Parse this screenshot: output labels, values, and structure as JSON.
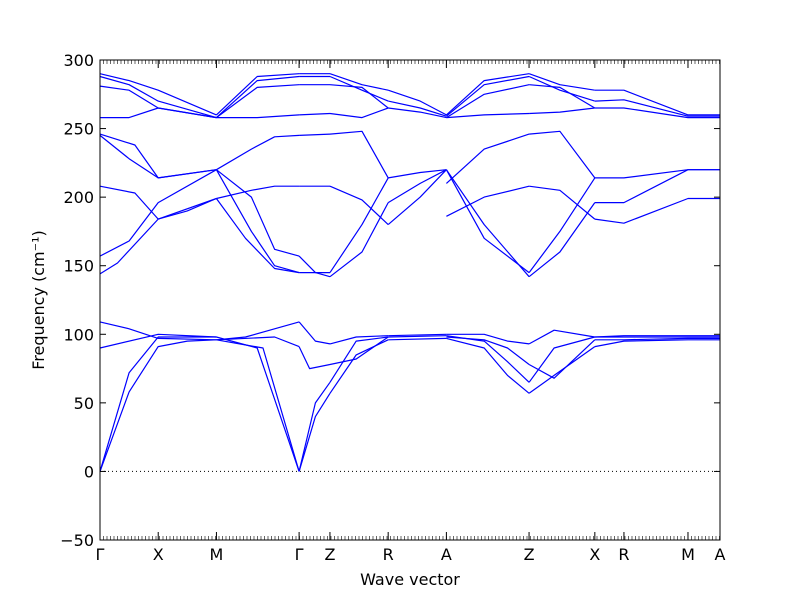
{
  "chart_data": {
    "type": "line",
    "xlabel": "Wave vector",
    "ylabel": "Frequency (cm⁻¹)",
    "ylim": [
      -50,
      300
    ],
    "yticks": [
      -50,
      0,
      50,
      100,
      150,
      200,
      250,
      300
    ],
    "xticks": [
      {
        "label": "Γ",
        "pos": 0.0
      },
      {
        "label": "X",
        "pos": 1.0
      },
      {
        "label": "M",
        "pos": 2.0
      },
      {
        "label": "Γ",
        "pos": 3.42
      },
      {
        "label": "Z",
        "pos": 3.95
      },
      {
        "label": "R",
        "pos": 4.95
      },
      {
        "label": "A",
        "pos": 5.95
      },
      {
        "label": "Z",
        "pos": 7.37
      },
      {
        "label": "X",
        "pos": 8.5
      },
      {
        "label": "R",
        "pos": 9.0
      },
      {
        "label": "M",
        "pos": 10.1
      },
      {
        "label": "A",
        "pos": 10.65
      }
    ],
    "xlim": [
      0,
      10.65
    ],
    "zero_line": true,
    "line_color": "#0000ff",
    "series": [
      {
        "x": [
          0,
          0.5,
          1.0,
          1.5,
          2.0
        ],
        "y": [
          0,
          58,
          91,
          95,
          96
        ]
      },
      {
        "x": [
          0,
          0.5,
          1.0,
          1.5,
          2.0
        ],
        "y": [
          0,
          72,
          98,
          98,
          98
        ]
      },
      {
        "x": [
          0,
          1.0,
          2.0
        ],
        "y": [
          90,
          100,
          98
        ]
      },
      {
        "x": [
          0,
          0.5,
          1.0,
          2.0
        ],
        "y": [
          109,
          104,
          97,
          96
        ]
      },
      {
        "x": [
          0,
          0.3,
          1.0,
          2.0
        ],
        "y": [
          144,
          152,
          184,
          199
        ]
      },
      {
        "x": [
          0,
          0.5,
          1.0,
          2.0
        ],
        "y": [
          157,
          168,
          196,
          220
        ]
      },
      {
        "x": [
          0,
          0.6,
          1.0,
          1.5,
          2.0
        ],
        "y": [
          208,
          203,
          184,
          190,
          199
        ]
      },
      {
        "x": [
          0,
          0.6,
          1.0,
          2.0
        ],
        "y": [
          246,
          238,
          214,
          220
        ]
      },
      {
        "x": [
          0,
          0.5,
          1.0,
          2.0
        ],
        "y": [
          245,
          228,
          214,
          220
        ]
      },
      {
        "x": [
          0,
          0.5,
          1.0,
          2.0
        ],
        "y": [
          258,
          258,
          265,
          258
        ]
      },
      {
        "x": [
          0,
          0.5,
          1.0,
          2.0
        ],
        "y": [
          281,
          278,
          265,
          258
        ]
      },
      {
        "x": [
          0,
          0.5,
          1.0,
          2.0
        ],
        "y": [
          288,
          282,
          270,
          258
        ]
      },
      {
        "x": [
          0,
          0.5,
          1.0,
          2.0
        ],
        "y": [
          290,
          285,
          278,
          260
        ]
      },
      {
        "x": [
          2.0,
          2.5,
          3.0,
          3.42
        ],
        "y": [
          96,
          98,
          104,
          109
        ]
      },
      {
        "x": [
          2.0,
          2.7,
          3.42
        ],
        "y": [
          98,
          90,
          0
        ]
      },
      {
        "x": [
          2.0,
          2.8,
          3.42
        ],
        "y": [
          96,
          90,
          0
        ]
      },
      {
        "x": [
          2.0,
          3.0,
          3.42
        ],
        "y": [
          96,
          98,
          91
        ]
      },
      {
        "x": [
          2.0,
          2.6,
          3.0,
          3.42
        ],
        "y": [
          199,
          205,
          208,
          208
        ]
      },
      {
        "x": [
          2.0,
          2.5,
          3.0,
          3.42
        ],
        "y": [
          199,
          170,
          148,
          145
        ]
      },
      {
        "x": [
          2.0,
          2.6,
          3.0,
          3.42
        ],
        "y": [
          220,
          175,
          150,
          145
        ]
      },
      {
        "x": [
          2.0,
          2.6,
          3.0,
          3.42
        ],
        "y": [
          220,
          235,
          244,
          245
        ]
      },
      {
        "x": [
          2.0,
          2.6,
          3.0,
          3.42
        ],
        "y": [
          220,
          200,
          162,
          157
        ]
      },
      {
        "x": [
          2.0,
          2.7,
          3.42
        ],
        "y": [
          258,
          280,
          282
        ]
      },
      {
        "x": [
          2.0,
          2.7,
          3.42
        ],
        "y": [
          258,
          285,
          288
        ]
      },
      {
        "x": [
          2.0,
          2.7,
          3.42
        ],
        "y": [
          260,
          288,
          290
        ]
      },
      {
        "x": [
          2.0,
          2.7,
          3.42
        ],
        "y": [
          258,
          258,
          260
        ]
      },
      {
        "x": [
          3.42,
          3.7,
          3.95
        ],
        "y": [
          0,
          40,
          57
        ]
      },
      {
        "x": [
          3.42,
          3.7,
          3.95
        ],
        "y": [
          0,
          50,
          65
        ]
      },
      {
        "x": [
          3.42,
          3.6,
          3.95
        ],
        "y": [
          91,
          75,
          78
        ]
      },
      {
        "x": [
          3.42,
          3.7,
          3.95
        ],
        "y": [
          109,
          95,
          93
        ]
      },
      {
        "x": [
          3.42,
          3.95
        ],
        "y": [
          145,
          145
        ]
      },
      {
        "x": [
          3.42,
          3.7,
          3.95
        ],
        "y": [
          157,
          145,
          142
        ]
      },
      {
        "x": [
          3.42,
          3.95
        ],
        "y": [
          208,
          208
        ]
      },
      {
        "x": [
          3.42,
          3.95
        ],
        "y": [
          245,
          246
        ]
      },
      {
        "x": [
          3.42,
          3.95
        ],
        "y": [
          260,
          261
        ]
      },
      {
        "x": [
          3.42,
          3.95
        ],
        "y": [
          282,
          282
        ]
      },
      {
        "x": [
          3.42,
          3.95
        ],
        "y": [
          288,
          288
        ]
      },
      {
        "x": [
          3.42,
          3.95
        ],
        "y": [
          290,
          290
        ]
      },
      {
        "x": [
          3.95,
          4.4,
          4.95
        ],
        "y": [
          57,
          85,
          96
        ]
      },
      {
        "x": [
          3.95,
          4.4,
          4.95
        ],
        "y": [
          65,
          95,
          98
        ]
      },
      {
        "x": [
          3.95,
          4.4,
          4.95
        ],
        "y": [
          78,
          82,
          98
        ]
      },
      {
        "x": [
          3.95,
          4.4,
          4.95
        ],
        "y": [
          93,
          98,
          99
        ]
      },
      {
        "x": [
          3.95,
          4.5,
          4.95
        ],
        "y": [
          142,
          160,
          196
        ]
      },
      {
        "x": [
          3.95,
          4.5,
          4.95
        ],
        "y": [
          145,
          180,
          214
        ]
      },
      {
        "x": [
          3.95,
          4.5,
          4.95
        ],
        "y": [
          208,
          198,
          180
        ]
      },
      {
        "x": [
          3.95,
          4.5,
          4.95
        ],
        "y": [
          246,
          248,
          214
        ]
      },
      {
        "x": [
          3.95,
          4.5,
          4.95
        ],
        "y": [
          261,
          258,
          265
        ]
      },
      {
        "x": [
          3.95,
          4.5,
          4.95
        ],
        "y": [
          282,
          280,
          265
        ]
      },
      {
        "x": [
          3.95,
          4.5,
          4.95
        ],
        "y": [
          288,
          278,
          270
        ]
      },
      {
        "x": [
          3.95,
          4.5,
          4.95
        ],
        "y": [
          290,
          282,
          278
        ]
      },
      {
        "x": [
          4.95,
          5.95
        ],
        "y": [
          96,
          97
        ]
      },
      {
        "x": [
          4.95,
          5.95
        ],
        "y": [
          98,
          99
        ]
      },
      {
        "x": [
          4.95,
          5.95
        ],
        "y": [
          99,
          100
        ]
      },
      {
        "x": [
          4.95,
          5.5,
          5.95
        ],
        "y": [
          180,
          200,
          220
        ]
      },
      {
        "x": [
          4.95,
          5.5,
          5.95
        ],
        "y": [
          196,
          210,
          220
        ]
      },
      {
        "x": [
          4.95,
          5.5,
          5.95
        ],
        "y": [
          214,
          218,
          220
        ]
      },
      {
        "x": [
          4.95,
          5.5,
          5.95
        ],
        "y": [
          265,
          262,
          258
        ]
      },
      {
        "x": [
          4.95,
          5.5,
          5.95
        ],
        "y": [
          270,
          265,
          259
        ]
      },
      {
        "x": [
          4.95,
          5.5,
          5.95
        ],
        "y": [
          278,
          270,
          260
        ]
      },
      {
        "x": [
          5.95,
          6.6,
          7.0,
          7.37
        ],
        "y": [
          97,
          90,
          70,
          57
        ]
      },
      {
        "x": [
          5.95,
          6.6,
          7.0,
          7.37
        ],
        "y": [
          99,
          95,
          80,
          65
        ]
      },
      {
        "x": [
          5.95,
          6.6,
          7.0,
          7.37
        ],
        "y": [
          100,
          100,
          95,
          93
        ]
      },
      {
        "x": [
          5.95,
          6.6,
          7.0,
          7.37
        ],
        "y": [
          98,
          96,
          90,
          78
        ]
      },
      {
        "x": [
          5.95,
          6.6,
          7.37
        ],
        "y": [
          220,
          180,
          142
        ]
      },
      {
        "x": [
          5.95,
          6.6,
          7.37
        ],
        "y": [
          220,
          170,
          145
        ]
      },
      {
        "x": [
          5.95,
          6.6,
          7.37
        ],
        "y": [
          186,
          200,
          208
        ]
      },
      {
        "x": [
          5.95,
          6.6,
          7.37
        ],
        "y": [
          210,
          235,
          246
        ]
      },
      {
        "x": [
          5.95,
          6.6,
          7.37
        ],
        "y": [
          258,
          260,
          261
        ]
      },
      {
        "x": [
          5.95,
          6.6,
          7.37
        ],
        "y": [
          258,
          275,
          282
        ]
      },
      {
        "x": [
          5.95,
          6.6,
          7.37
        ],
        "y": [
          259,
          282,
          288
        ]
      },
      {
        "x": [
          5.95,
          6.6,
          7.37
        ],
        "y": [
          260,
          285,
          290
        ]
      },
      {
        "x": [
          7.37,
          7.8,
          8.5
        ],
        "y": [
          57,
          70,
          91
        ]
      },
      {
        "x": [
          7.37,
          7.8,
          8.5
        ],
        "y": [
          65,
          90,
          98
        ]
      },
      {
        "x": [
          7.37,
          7.8,
          8.5
        ],
        "y": [
          93,
          103,
          98
        ]
      },
      {
        "x": [
          7.37,
          7.8,
          8.5
        ],
        "y": [
          78,
          68,
          96
        ]
      },
      {
        "x": [
          7.37,
          7.9,
          8.5
        ],
        "y": [
          142,
          160,
          196
        ]
      },
      {
        "x": [
          7.37,
          7.9,
          8.5
        ],
        "y": [
          145,
          175,
          214
        ]
      },
      {
        "x": [
          7.37,
          7.9,
          8.5
        ],
        "y": [
          208,
          205,
          184
        ]
      },
      {
        "x": [
          7.37,
          7.9,
          8.5
        ],
        "y": [
          246,
          248,
          214
        ]
      },
      {
        "x": [
          7.37,
          7.9,
          8.5
        ],
        "y": [
          261,
          262,
          265
        ]
      },
      {
        "x": [
          7.37,
          7.9,
          8.5
        ],
        "y": [
          282,
          280,
          265
        ]
      },
      {
        "x": [
          7.37,
          7.9,
          8.5
        ],
        "y": [
          288,
          278,
          270
        ]
      },
      {
        "x": [
          7.37,
          7.9,
          8.5
        ],
        "y": [
          290,
          282,
          278
        ]
      },
      {
        "x": [
          8.5,
          9.0,
          10.1,
          10.65
        ],
        "y": [
          91,
          95,
          96,
          96
        ]
      },
      {
        "x": [
          8.5,
          9.0,
          10.1,
          10.65
        ],
        "y": [
          96,
          96,
          97,
          97
        ]
      },
      {
        "x": [
          8.5,
          9.0,
          10.1,
          10.65
        ],
        "y": [
          98,
          98,
          98,
          98
        ]
      },
      {
        "x": [
          8.5,
          9.0,
          10.1,
          10.65
        ],
        "y": [
          98,
          99,
          99,
          99
        ]
      },
      {
        "x": [
          8.5,
          9.0,
          10.1,
          10.65
        ],
        "y": [
          184,
          181,
          199,
          199
        ]
      },
      {
        "x": [
          8.5,
          9.0,
          10.1,
          10.65
        ],
        "y": [
          196,
          196,
          220,
          220
        ]
      },
      {
        "x": [
          8.5,
          9.0,
          10.1,
          10.65
        ],
        "y": [
          214,
          214,
          220,
          220
        ]
      },
      {
        "x": [
          8.5,
          9.0,
          10.1,
          10.65
        ],
        "y": [
          265,
          265,
          258,
          258
        ]
      },
      {
        "x": [
          8.5,
          9.0,
          10.1,
          10.65
        ],
        "y": [
          270,
          271,
          259,
          259
        ]
      },
      {
        "x": [
          8.5,
          9.0,
          10.1,
          10.65
        ],
        "y": [
          278,
          278,
          260,
          260
        ]
      }
    ]
  }
}
